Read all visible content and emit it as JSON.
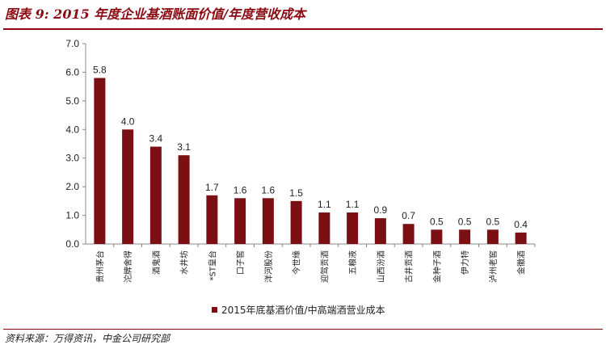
{
  "figure": {
    "title": "图表 9: 2015 年度企业基酒账面价值/年度营收成本",
    "source": "资料来源：万得资讯，中金公司研究部"
  },
  "colors": {
    "bar": "#7b0f13",
    "accent": "#8b0a12"
  },
  "chart_data": {
    "type": "bar",
    "title": "",
    "xlabel": "",
    "ylabel": "",
    "ylim": [
      0,
      7
    ],
    "yticks": [
      "0.0",
      "1.0",
      "2.0",
      "3.0",
      "4.0",
      "5.0",
      "6.0",
      "7.0"
    ],
    "grid": false,
    "legend_position": "bottom",
    "categories": [
      "贵州茅台",
      "沱牌舍得",
      "酒鬼酒",
      "水井坊",
      "*ST皇台",
      "口子窖",
      "洋河股份",
      "今世缘",
      "迎驾贡酒",
      "五粮液",
      "山西汾酒",
      "古井贡酒",
      "金种子酒",
      "伊力特",
      "泸州老窖",
      "金徽酒"
    ],
    "series": [
      {
        "name": "2015年底基酒价值/中高端酒营业成本",
        "values": [
          5.8,
          4.0,
          3.4,
          3.1,
          1.7,
          1.6,
          1.6,
          1.5,
          1.1,
          1.1,
          0.9,
          0.7,
          0.5,
          0.5,
          0.5,
          0.4
        ],
        "labels": [
          "5.8",
          "4.0",
          "3.4",
          "3.1",
          "1.7",
          "1.6",
          "1.6",
          "1.5",
          "1.1",
          "1.1",
          "0.9",
          "0.7",
          "0.5",
          "0.5",
          "0.5",
          "0.4"
        ]
      }
    ]
  }
}
